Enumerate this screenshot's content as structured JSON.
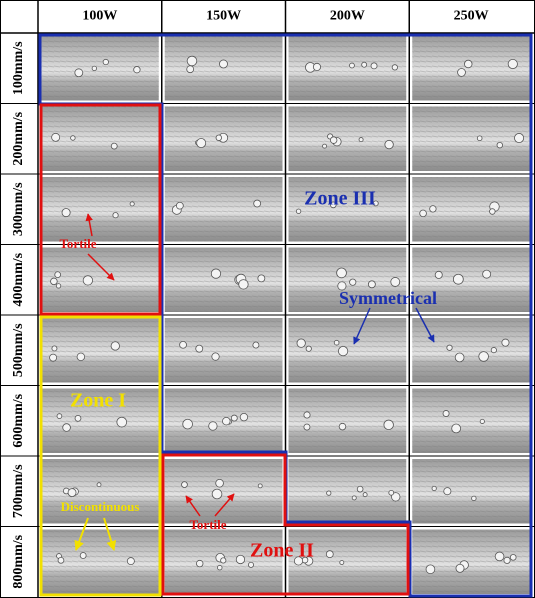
{
  "columns": [
    "100W",
    "150W",
    "200W",
    "250W"
  ],
  "rows": [
    "100mm/s",
    "200mm/s",
    "300mm/s",
    "400mm/s",
    "500mm/s",
    "600mm/s",
    "700mm/s",
    "800mm/s"
  ],
  "annotations": {
    "zone_3": "Zone III",
    "symmetrical": "Symmetrical",
    "tortile_1": "Tortile",
    "tortile_2": "Tortile",
    "zone_1": "Zone I",
    "discontinuous": "Discontinuous",
    "zone_2": "Zone II"
  }
}
